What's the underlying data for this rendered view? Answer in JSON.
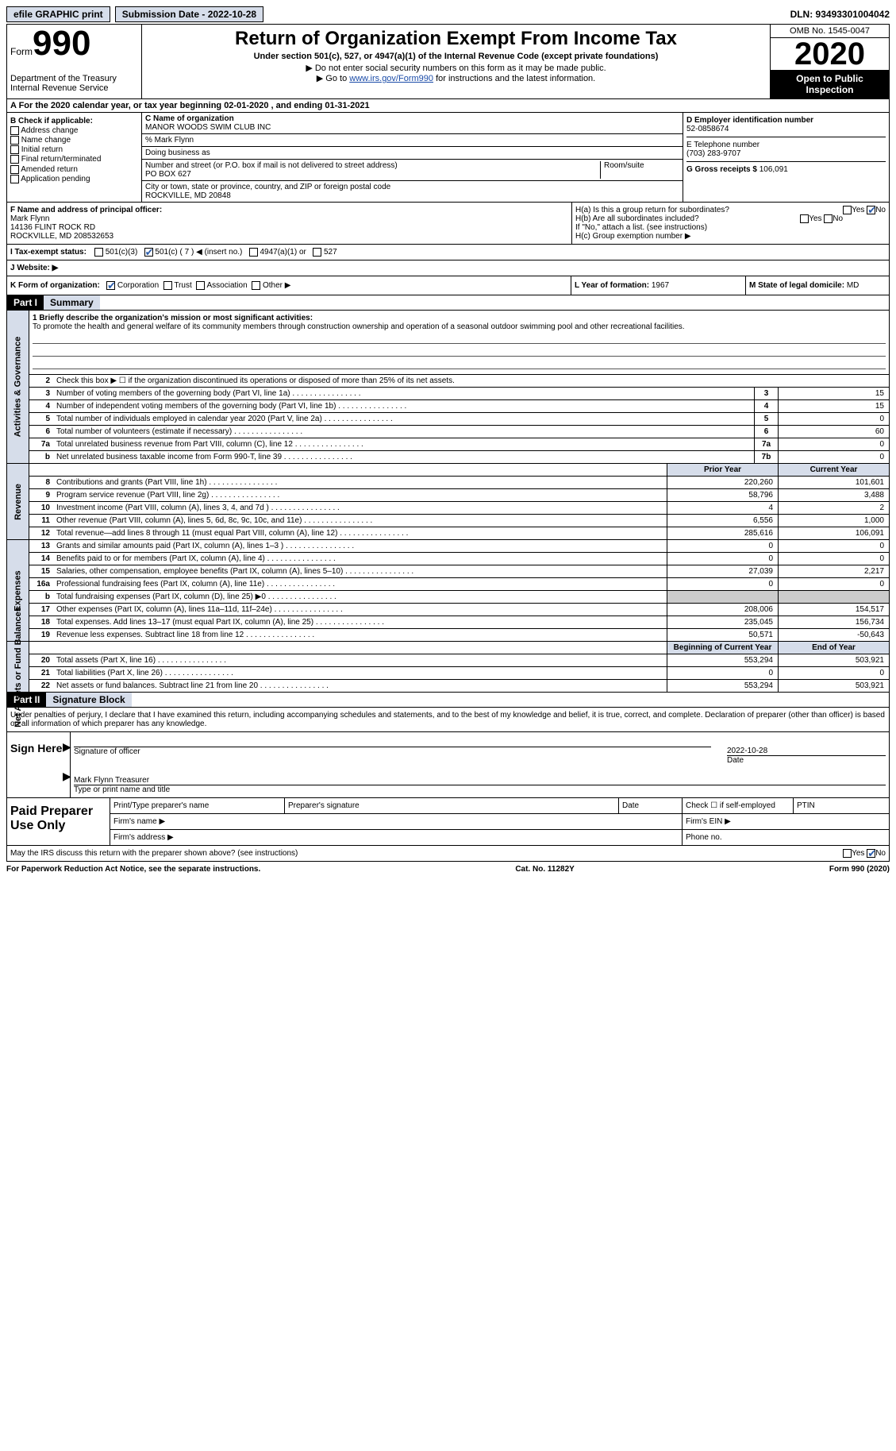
{
  "topbar": {
    "efile": "efile GRAPHIC print",
    "submission": "Submission Date - 2022-10-28",
    "dln": "DLN: 93493301004042"
  },
  "header": {
    "form_label": "Form",
    "form_num": "990",
    "dept": "Department of the Treasury\nInternal Revenue Service",
    "title": "Return of Organization Exempt From Income Tax",
    "sub": "Under section 501(c), 527, or 4947(a)(1) of the Internal Revenue Code (except private foundations)",
    "note1": "▶ Do not enter social security numbers on this form as it may be made public.",
    "note2_pre": "▶ Go to ",
    "note2_link": "www.irs.gov/Form990",
    "note2_post": " for instructions and the latest information.",
    "omb": "OMB No. 1545-0047",
    "year": "2020",
    "inspect": "Open to Public Inspection"
  },
  "sectionA": "A For the 2020 calendar year, or tax year beginning 02-01-2020   , and ending 01-31-2021",
  "colB": {
    "title": "B Check if applicable:",
    "items": [
      "Address change",
      "Name change",
      "Initial return",
      "Final return/terminated",
      "Amended return",
      "Application pending"
    ]
  },
  "colC": {
    "name_label": "C Name of organization",
    "name": "MANOR WOODS SWIM CLUB INC",
    "care_of": "% Mark Flynn",
    "dba_label": "Doing business as",
    "street_label": "Number and street (or P.O. box if mail is not delivered to street address)",
    "room_label": "Room/suite",
    "street": "PO BOX 627",
    "city_label": "City or town, state or province, country, and ZIP or foreign postal code",
    "city": "ROCKVILLE, MD  20848"
  },
  "colD": {
    "ein_label": "D Employer identification number",
    "ein": "52-0858674",
    "phone_label": "E Telephone number",
    "phone": "(703) 283-9707",
    "gross_label": "G Gross receipts $",
    "gross": "106,091"
  },
  "fgh": {
    "f_label": "F Name and address of principal officer:",
    "f_name": "Mark Flynn",
    "f_addr1": "14136 FLINT ROCK RD",
    "f_addr2": "ROCKVILLE, MD  208532653",
    "ha": "H(a)  Is this a group return for subordinates?",
    "hb": "H(b)  Are all subordinates included?",
    "hb_note": "If \"No,\" attach a list. (see instructions)",
    "hc": "H(c)  Group exemption number ▶",
    "yes": "Yes",
    "no": "No"
  },
  "rowI": {
    "label": "I   Tax-exempt status:",
    "opts": [
      "501(c)(3)",
      "501(c) ( 7 ) ◀ (insert no.)",
      "4947(a)(1) or",
      "527"
    ]
  },
  "rowJ": "J   Website: ▶",
  "rowK": {
    "label": "K Form of organization:",
    "opts": [
      "Corporation",
      "Trust",
      "Association",
      "Other ▶"
    ],
    "l_label": "L Year of formation: ",
    "l_val": "1967",
    "m_label": "M State of legal domicile: ",
    "m_val": "MD"
  },
  "part1": {
    "hdr": "Part I",
    "title": "Summary",
    "side1": "Activities & Governance",
    "side2": "Revenue",
    "side3": "Expenses",
    "side4": "Net Assets or Fund Balances",
    "mission_label": "1   Briefly describe the organization's mission or most significant activities:",
    "mission": "To promote the health and general welfare of its community members through construction ownership and operation of a seasonal outdoor swimming pool and other recreational facilities.",
    "line2": "Check this box ▶ ☐ if the organization discontinued its operations or disposed of more than 25% of its net assets.",
    "prior_hdr": "Prior Year",
    "current_hdr": "Current Year",
    "begin_hdr": "Beginning of Current Year",
    "end_hdr": "End of Year"
  },
  "lines_gov": [
    {
      "n": "3",
      "t": "Number of voting members of the governing body (Part VI, line 1a)",
      "b": "3",
      "v": "15"
    },
    {
      "n": "4",
      "t": "Number of independent voting members of the governing body (Part VI, line 1b)",
      "b": "4",
      "v": "15"
    },
    {
      "n": "5",
      "t": "Total number of individuals employed in calendar year 2020 (Part V, line 2a)",
      "b": "5",
      "v": "0"
    },
    {
      "n": "6",
      "t": "Total number of volunteers (estimate if necessary)",
      "b": "6",
      "v": "60"
    },
    {
      "n": "7a",
      "t": "Total unrelated business revenue from Part VIII, column (C), line 12",
      "b": "7a",
      "v": "0"
    },
    {
      "n": "b",
      "t": "Net unrelated business taxable income from Form 990-T, line 39",
      "b": "7b",
      "v": "0"
    }
  ],
  "lines_rev": [
    {
      "n": "8",
      "t": "Contributions and grants (Part VIII, line 1h)",
      "p": "220,260",
      "c": "101,601"
    },
    {
      "n": "9",
      "t": "Program service revenue (Part VIII, line 2g)",
      "p": "58,796",
      "c": "3,488"
    },
    {
      "n": "10",
      "t": "Investment income (Part VIII, column (A), lines 3, 4, and 7d )",
      "p": "4",
      "c": "2"
    },
    {
      "n": "11",
      "t": "Other revenue (Part VIII, column (A), lines 5, 6d, 8c, 9c, 10c, and 11e)",
      "p": "6,556",
      "c": "1,000"
    },
    {
      "n": "12",
      "t": "Total revenue—add lines 8 through 11 (must equal Part VIII, column (A), line 12)",
      "p": "285,616",
      "c": "106,091"
    }
  ],
  "lines_exp": [
    {
      "n": "13",
      "t": "Grants and similar amounts paid (Part IX, column (A), lines 1–3 )",
      "p": "0",
      "c": "0"
    },
    {
      "n": "14",
      "t": "Benefits paid to or for members (Part IX, column (A), line 4)",
      "p": "0",
      "c": "0"
    },
    {
      "n": "15",
      "t": "Salaries, other compensation, employee benefits (Part IX, column (A), lines 5–10)",
      "p": "27,039",
      "c": "2,217"
    },
    {
      "n": "16a",
      "t": "Professional fundraising fees (Part IX, column (A), line 11e)",
      "p": "0",
      "c": "0"
    },
    {
      "n": "b",
      "t": "Total fundraising expenses (Part IX, column (D), line 25) ▶0",
      "p": "",
      "c": "",
      "gray": true
    },
    {
      "n": "17",
      "t": "Other expenses (Part IX, column (A), lines 11a–11d, 11f–24e)",
      "p": "208,006",
      "c": "154,517"
    },
    {
      "n": "18",
      "t": "Total expenses. Add lines 13–17 (must equal Part IX, column (A), line 25)",
      "p": "235,045",
      "c": "156,734"
    },
    {
      "n": "19",
      "t": "Revenue less expenses. Subtract line 18 from line 12",
      "p": "50,571",
      "c": "-50,643"
    }
  ],
  "lines_net": [
    {
      "n": "20",
      "t": "Total assets (Part X, line 16)",
      "p": "553,294",
      "c": "503,921"
    },
    {
      "n": "21",
      "t": "Total liabilities (Part X, line 26)",
      "p": "0",
      "c": "0"
    },
    {
      "n": "22",
      "t": "Net assets or fund balances. Subtract line 21 from line 20",
      "p": "553,294",
      "c": "503,921"
    }
  ],
  "part2": {
    "hdr": "Part II",
    "title": "Signature Block",
    "decl": "Under penalties of perjury, I declare that I have examined this return, including accompanying schedules and statements, and to the best of my knowledge and belief, it is true, correct, and complete. Declaration of preparer (other than officer) is based on all information of which preparer has any knowledge.",
    "sign_here": "Sign Here",
    "sig_officer": "Signature of officer",
    "sig_date": "2022-10-28",
    "date_label": "Date",
    "officer_name": "Mark Flynn Treasurer",
    "type_label": "Type or print name and title",
    "paid": "Paid Preparer Use Only",
    "p_name": "Print/Type preparer's name",
    "p_sig": "Preparer's signature",
    "p_date": "Date",
    "p_self": "Check ☐ if self-employed",
    "p_ptin": "PTIN",
    "firm_name": "Firm's name  ▶",
    "firm_ein": "Firm's EIN ▶",
    "firm_addr": "Firm's address ▶",
    "firm_phone": "Phone no.",
    "discuss": "May the IRS discuss this return with the preparer shown above? (see instructions)"
  },
  "footer": {
    "left": "For Paperwork Reduction Act Notice, see the separate instructions.",
    "mid": "Cat. No. 11282Y",
    "right": "Form 990 (2020)"
  }
}
